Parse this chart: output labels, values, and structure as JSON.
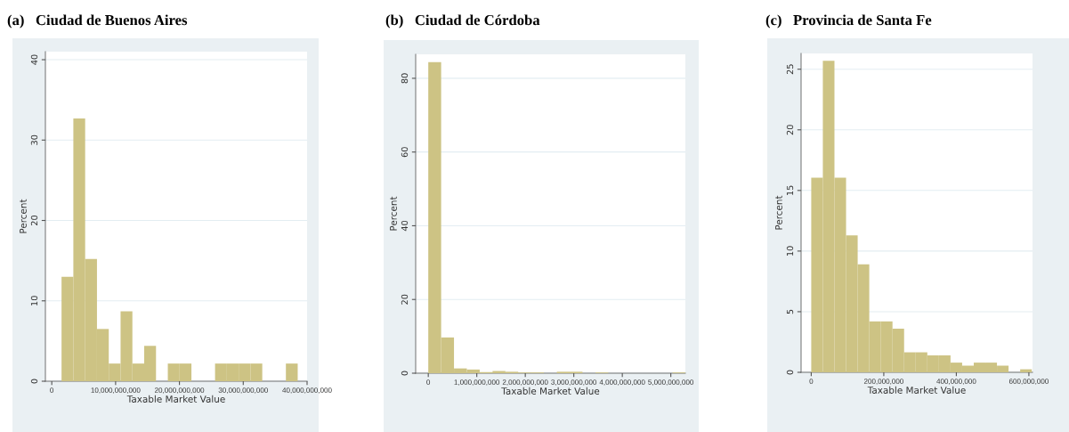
{
  "chart_data": [
    {
      "type": "histogram",
      "title": "(a)   Ciudad de Buenos Aires",
      "xlabel": "Taxable Market Value",
      "ylabel": "Percent",
      "color": "#cdc384",
      "grid": "y",
      "bins": [
        1530000000,
        3380000000,
        5230000000,
        7080000000,
        8930000000,
        10780000000,
        12630000000,
        14480000000,
        16330000000,
        18180000000,
        20030000000,
        21880000000,
        23730000000,
        25580000000,
        27430000000,
        29280000000,
        31130000000,
        32980000000,
        34830000000,
        36680000000,
        38530000000
      ],
      "values": [
        13.0,
        32.7,
        15.2,
        6.5,
        2.2,
        8.7,
        2.2,
        4.4,
        0,
        2.2,
        2.2,
        0,
        0,
        2.2,
        2.2,
        2.2,
        2.2,
        0,
        0,
        2.2
      ],
      "xlim": [
        -1000000000,
        40000000000
      ],
      "xticks": [
        0,
        {
          "value": 10000000000,
          "label": "10,000,000,000"
        },
        {
          "value": 20000000000,
          "label": "20,000,000,000"
        },
        {
          "value": 30000000000,
          "label": "30,000,000,000"
        },
        {
          "value": 40000000000,
          "label": "40,000,000,000"
        }
      ],
      "ylim": [
        0,
        41
      ],
      "yticks": [
        0,
        10,
        20,
        30,
        40
      ]
    },
    {
      "type": "histogram",
      "title": "(b)   Ciudad de Córdoba",
      "xlabel": "Taxable Market Value",
      "ylabel": "Percent",
      "color": "#cdc384",
      "grid": "y",
      "bins": [
        0,
        265000000,
        530000000,
        795000000,
        1060000000,
        1325000000,
        1590000000,
        1855000000,
        2120000000,
        2385000000,
        2650000000,
        2915000000,
        3180000000,
        3445000000,
        3710000000,
        3975000000,
        4240000000,
        4505000000,
        4770000000,
        5035000000,
        5300000000
      ],
      "values": [
        84.4,
        9.7,
        1.3,
        1.0,
        0.3,
        0.6,
        0.4,
        0.2,
        0.2,
        0,
        0.4,
        0.4,
        0,
        0.2,
        0,
        0,
        0,
        0,
        0,
        0.2
      ],
      "xlim": [
        -260000000,
        5300000000
      ],
      "xticks": [
        0,
        {
          "value": 1000000000,
          "label": "1,000,000,000"
        },
        {
          "value": 2000000000,
          "label": "2,000,000,000"
        },
        {
          "value": 3000000000,
          "label": "3,000,000,000"
        },
        {
          "value": 4000000000,
          "label": "4,000,000,000"
        },
        {
          "value": 5000000000,
          "label": "5,000,000,000"
        }
      ],
      "ylim": [
        0,
        86.5
      ],
      "yticks": [
        0,
        20,
        40,
        60,
        80
      ]
    },
    {
      "type": "histogram",
      "title": "(c)   Provincia de Santa Fe",
      "xlabel": "Taxable Market Value",
      "ylabel": "Percent",
      "color": "#cdc384",
      "grid": "y",
      "bins": [
        0,
        32000000,
        64000000,
        96000000,
        128000000,
        160000000,
        192000000,
        224000000,
        256000000,
        288000000,
        320000000,
        352000000,
        384000000,
        416000000,
        448000000,
        480000000,
        512000000,
        544000000,
        576000000,
        608000000
      ],
      "values": [
        16.05,
        25.7,
        16.05,
        11.3,
        8.9,
        4.2,
        4.2,
        3.6,
        1.65,
        1.65,
        1.4,
        1.4,
        0.8,
        0.55,
        0.8,
        0.8,
        0.55,
        0,
        0.25
      ],
      "xlim": [
        -28000000,
        610000000
      ],
      "xticks": [
        0,
        {
          "value": 200000000,
          "label": "200,000,000"
        },
        {
          "value": 400000000,
          "label": "400,000,000"
        },
        {
          "value": 600000000,
          "label": "600,000,000"
        }
      ],
      "ylim": [
        0,
        26.3
      ],
      "yticks": [
        0,
        5,
        10,
        15,
        20,
        25
      ]
    }
  ]
}
